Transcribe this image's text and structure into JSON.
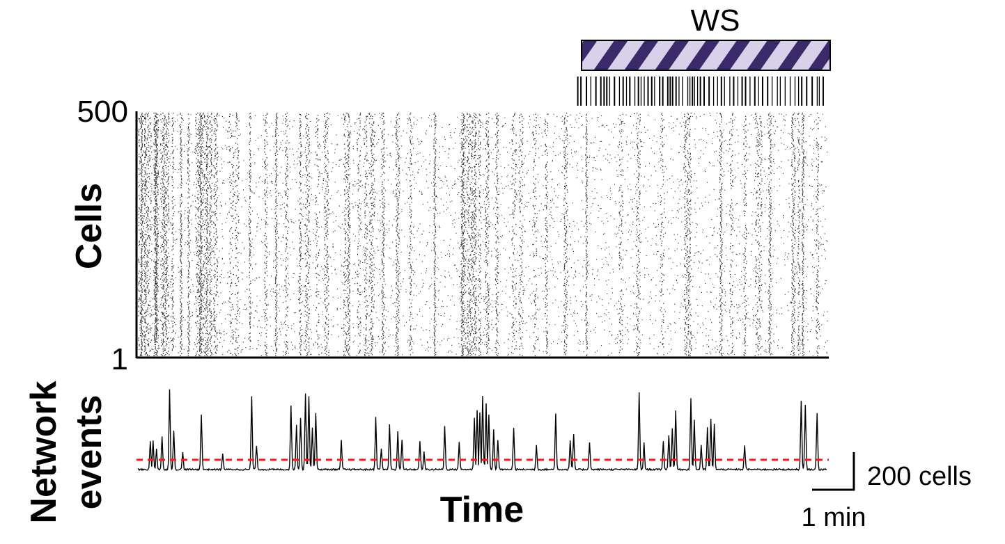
{
  "chart_data": {
    "type": "raster_and_line",
    "raster": {
      "ylabel": "Cells",
      "y_ticks": [
        "500",
        "1"
      ],
      "ylim": [
        1,
        500
      ],
      "dense_bursts": [
        3,
        5,
        9,
        12,
        17,
        24,
        25,
        26,
        27,
        35,
        38,
        42,
        50,
        62,
        73,
        85,
        89,
        90,
        93,
        97,
        100,
        105,
        112,
        135,
        143,
        162,
        185,
        200,
        215,
        235,
        245,
        260,
        273,
        300,
        305,
        320,
        330,
        337,
        340,
        355,
        376,
        395,
        430,
        470,
        471,
        472,
        478,
        482,
        487,
        489,
        495,
        506,
        520,
        545,
        555,
        575,
        592,
        620,
        650,
        700,
        725,
        760,
        795,
        800,
        845,
        860,
        880,
        897,
        902,
        916,
        950,
        958,
        964,
        985
      ],
      "sparse_fraction": 0.11
    },
    "stimulus": {
      "label": "WS",
      "start": 638,
      "end": 995,
      "ticks_start": 638,
      "ticks_end": 995
    },
    "trace": {
      "ylabel_line1": "Network",
      "ylabel_line2": "events",
      "xlabel": "Time",
      "threshold": 15,
      "peaks": [
        {
          "t": 18,
          "h": 40
        },
        {
          "t": 22,
          "h": 42
        },
        {
          "t": 27,
          "h": 30
        },
        {
          "t": 35,
          "h": 48
        },
        {
          "t": 46,
          "h": 115
        },
        {
          "t": 52,
          "h": 55
        },
        {
          "t": 65,
          "h": 25
        },
        {
          "t": 92,
          "h": 80
        },
        {
          "t": 123,
          "h": 22
        },
        {
          "t": 165,
          "h": 105
        },
        {
          "t": 172,
          "h": 35
        },
        {
          "t": 222,
          "h": 92
        },
        {
          "t": 230,
          "h": 65
        },
        {
          "t": 236,
          "h": 75
        },
        {
          "t": 243,
          "h": 110
        },
        {
          "t": 248,
          "h": 105
        },
        {
          "t": 253,
          "h": 60
        },
        {
          "t": 258,
          "h": 82
        },
        {
          "t": 295,
          "h": 42
        },
        {
          "t": 345,
          "h": 75
        },
        {
          "t": 353,
          "h": 30
        },
        {
          "t": 365,
          "h": 65
        },
        {
          "t": 377,
          "h": 55
        },
        {
          "t": 383,
          "h": 42
        },
        {
          "t": 409,
          "h": 40
        },
        {
          "t": 415,
          "h": 25
        },
        {
          "t": 445,
          "h": 62
        },
        {
          "t": 466,
          "h": 40
        },
        {
          "t": 488,
          "h": 75
        },
        {
          "t": 492,
          "h": 85
        },
        {
          "t": 496,
          "h": 82
        },
        {
          "t": 500,
          "h": 105
        },
        {
          "t": 505,
          "h": 95
        },
        {
          "t": 509,
          "h": 78
        },
        {
          "t": 516,
          "h": 58
        },
        {
          "t": 522,
          "h": 42
        },
        {
          "t": 545,
          "h": 60
        },
        {
          "t": 578,
          "h": 35
        },
        {
          "t": 606,
          "h": 80
        },
        {
          "t": 627,
          "h": 42
        },
        {
          "t": 632,
          "h": 50
        },
        {
          "t": 655,
          "h": 40
        },
        {
          "t": 727,
          "h": 110
        },
        {
          "t": 734,
          "h": 38
        },
        {
          "t": 762,
          "h": 40
        },
        {
          "t": 770,
          "h": 50
        },
        {
          "t": 775,
          "h": 60
        },
        {
          "t": 780,
          "h": 85
        },
        {
          "t": 802,
          "h": 102
        },
        {
          "t": 807,
          "h": 72
        },
        {
          "t": 817,
          "h": 35
        },
        {
          "t": 826,
          "h": 60
        },
        {
          "t": 831,
          "h": 72
        },
        {
          "t": 836,
          "h": 65
        },
        {
          "t": 880,
          "h": 35
        },
        {
          "t": 962,
          "h": 98
        },
        {
          "t": 968,
          "h": 92
        },
        {
          "t": 985,
          "h": 82
        }
      ]
    },
    "scalebar": {
      "vertical_value": 200,
      "vertical_label": "200 cells",
      "horizontal_value": 1,
      "horizontal_label": "1 min"
    },
    "colors": {
      "stimulus_fill": "#d9d0ea",
      "stimulus_stripe": "#3b2a6a",
      "threshold_line": "#ff1a1a",
      "ink": "#000000"
    }
  }
}
